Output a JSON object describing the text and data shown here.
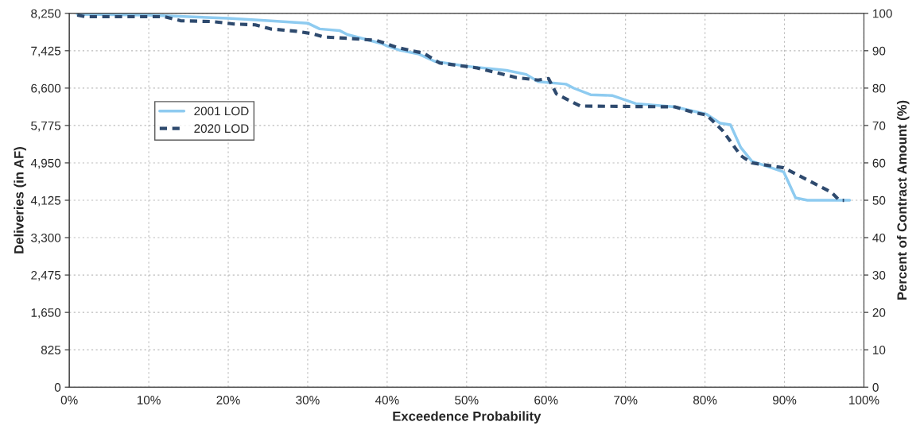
{
  "chart_data": {
    "type": "line",
    "xlabel": "Exceedence Probability",
    "ylabel": "Deliveries (in AF)",
    "y2label": "Percent of Contract Amount (%)",
    "series": [
      {
        "name": "2001 LOD",
        "color": "#8ecbf0",
        "line_style": "solid",
        "x": [
          1,
          10,
          20,
          25,
          30,
          31.5,
          34,
          35,
          39.3,
          40,
          41.5,
          44,
          46,
          50,
          55,
          57.5,
          59,
          62.5,
          63.5,
          65.6,
          68.3,
          71.3,
          76.2,
          80.2,
          81.9,
          83.2,
          84.5,
          85.9,
          89.9,
          91.4,
          92.9,
          98.2
        ],
        "values": [
          8230,
          8212,
          8140,
          8087,
          8033,
          7907,
          7871,
          7782,
          7584,
          7531,
          7441,
          7351,
          7190,
          7082,
          6993,
          6903,
          6741,
          6688,
          6598,
          6455,
          6437,
          6258,
          6186,
          6024,
          5827,
          5791,
          5289,
          4985,
          4751,
          4178,
          4124,
          4124
        ]
      },
      {
        "name": "2020 LOD",
        "color": "#2e4a6e",
        "line_style": "dashed",
        "x": [
          1,
          2,
          12,
          14,
          18,
          20.7,
          23.4,
          25.3,
          28.6,
          30.6,
          32,
          34,
          38.6,
          41.3,
          44.6,
          46.6,
          51.3,
          56.3,
          59,
          60.3,
          61.3,
          63.3,
          64.3,
          76.2,
          78.6,
          80.2,
          82.2,
          84.5,
          85.9,
          89.9,
          95.9,
          96.9,
          97.5
        ],
        "values": [
          8212,
          8176,
          8176,
          8087,
          8069,
          8015,
          7997,
          7907,
          7853,
          7800,
          7728,
          7710,
          7656,
          7495,
          7369,
          7154,
          7046,
          6831,
          6778,
          6813,
          6473,
          6293,
          6204,
          6186,
          6060,
          6007,
          5666,
          5110,
          4949,
          4841,
          4303,
          4124,
          4124
        ]
      }
    ],
    "xlim": [
      0,
      100
    ],
    "xticks": [
      {
        "value": 0,
        "label": "0%"
      },
      {
        "value": 10,
        "label": "10%"
      },
      {
        "value": 20,
        "label": "20%"
      },
      {
        "value": 30,
        "label": "30%"
      },
      {
        "value": 40,
        "label": "40%"
      },
      {
        "value": 50,
        "label": "50%"
      },
      {
        "value": 60,
        "label": "60%"
      },
      {
        "value": 70,
        "label": "70%"
      },
      {
        "value": 80,
        "label": "80%"
      },
      {
        "value": 90,
        "label": "90%"
      },
      {
        "value": 100,
        "label": "100%"
      }
    ],
    "ylim": [
      0,
      8250
    ],
    "yticks": [
      {
        "value": 0,
        "label": "0"
      },
      {
        "value": 825,
        "label": "825"
      },
      {
        "value": 1650,
        "label": "1,650"
      },
      {
        "value": 2475,
        "label": "2,475"
      },
      {
        "value": 3300,
        "label": "3,300"
      },
      {
        "value": 4125,
        "label": "4,125"
      },
      {
        "value": 4950,
        "label": "4,950"
      },
      {
        "value": 5775,
        "label": "5,775"
      },
      {
        "value": 6600,
        "label": "6,600"
      },
      {
        "value": 7425,
        "label": "7,425"
      },
      {
        "value": 8250,
        "label": "8,250"
      }
    ],
    "y2lim": [
      0,
      100
    ],
    "y2ticks": [
      0,
      10,
      20,
      30,
      40,
      50,
      60,
      70,
      80,
      90,
      100
    ],
    "grid": true,
    "legend": "top left",
    "marker": "none"
  }
}
